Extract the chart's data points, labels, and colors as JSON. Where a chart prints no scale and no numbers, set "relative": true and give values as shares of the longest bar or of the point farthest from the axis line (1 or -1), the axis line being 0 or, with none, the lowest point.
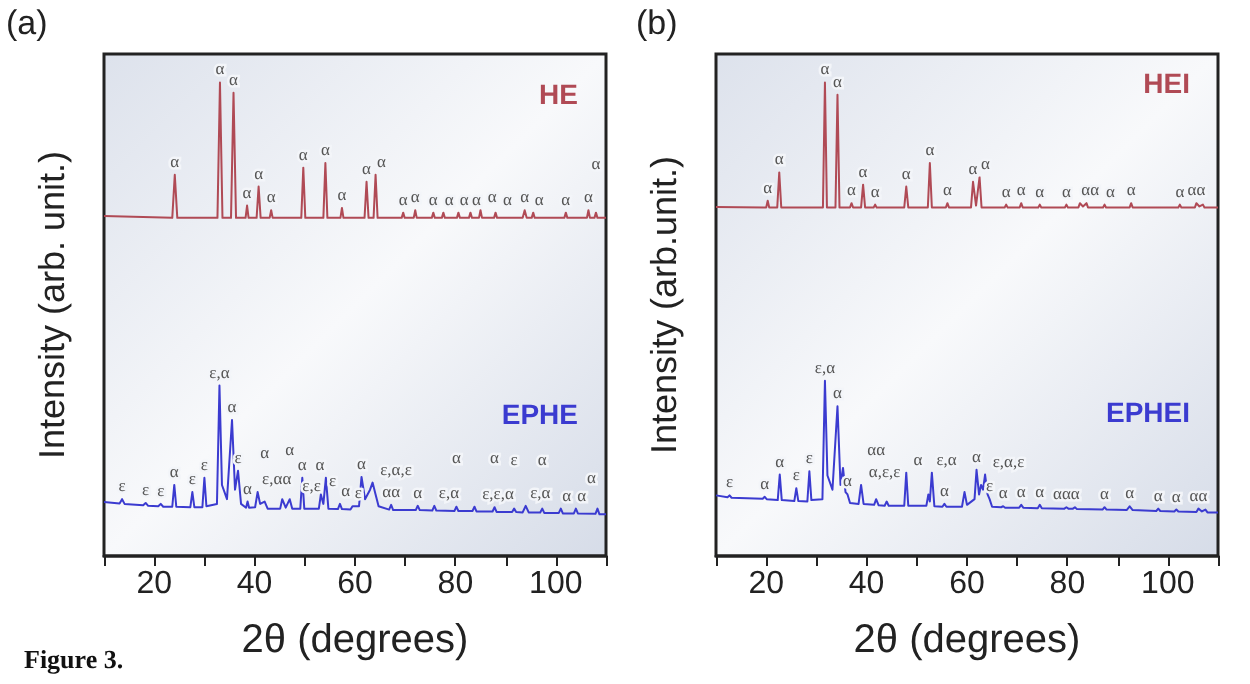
{
  "chart_data": [
    {
      "type": "line",
      "title": "(a)",
      "xlabel": "2θ (degrees)",
      "ylabel": "Intensity (arb. unit.)",
      "relative": true,
      "xlim": [
        10,
        110
      ],
      "xticks": [
        {
          "value": 10,
          "label": null
        },
        20,
        {
          "value": 30,
          "label": null
        },
        40,
        {
          "value": 50,
          "label": null
        },
        60,
        {
          "value": 70,
          "label": null
        },
        80,
        {
          "value": 90,
          "label": null
        },
        100,
        {
          "value": 110,
          "label": null
        }
      ],
      "series": [
        {
          "name": "HE",
          "color": "#b04a55",
          "x": [
            10,
            23.6,
            24.1,
            24.6,
            32.6,
            33.1,
            33.6,
            35.3,
            35.8,
            36.3,
            38.2,
            38.5,
            38.8,
            40.4,
            40.8,
            41.2,
            43,
            43.3,
            43.6,
            49.3,
            49.7,
            50.1,
            53.7,
            54.1,
            54.5,
            57.1,
            57.4,
            57.7,
            61.9,
            62.3,
            62.7,
            63.7,
            64.1,
            64.5,
            69.3,
            69.6,
            69.9,
            71.7,
            72,
            72.3,
            75.3,
            75.6,
            75.9,
            77.3,
            77.6,
            77.9,
            80.3,
            80.6,
            80.9,
            82.7,
            83,
            83.3,
            84.7,
            85,
            85.3,
            87.7,
            88,
            88.3,
            93.4,
            93.8,
            94.2,
            95.2,
            95.5,
            95.8,
            101.7,
            102,
            102.3,
            106.2,
            106.5,
            106.8,
            107.7,
            108,
            108.3,
            110
          ],
          "values": [
            0.718,
            0.714,
            0.805,
            0.714,
            0.714,
            1.0,
            0.714,
            0.714,
            0.978,
            0.714,
            0.714,
            0.74,
            0.714,
            0.714,
            0.78,
            0.714,
            0.714,
            0.73,
            0.714,
            0.714,
            0.82,
            0.714,
            0.714,
            0.83,
            0.714,
            0.714,
            0.735,
            0.714,
            0.714,
            0.79,
            0.714,
            0.714,
            0.805,
            0.714,
            0.714,
            0.725,
            0.714,
            0.714,
            0.73,
            0.714,
            0.714,
            0.725,
            0.714,
            0.714,
            0.725,
            0.714,
            0.714,
            0.725,
            0.714,
            0.714,
            0.725,
            0.714,
            0.714,
            0.73,
            0.714,
            0.714,
            0.725,
            0.714,
            0.714,
            0.73,
            0.714,
            0.714,
            0.725,
            0.714,
            0.714,
            0.725,
            0.714,
            0.714,
            0.73,
            0.714,
            0.714,
            0.725,
            0.714,
            0.714
          ]
        },
        {
          "name": "EPHE",
          "color": "#3b3bd0",
          "x": [
            10,
            13.1,
            13.6,
            14.1,
            17.8,
            18.3,
            18.8,
            20.8,
            21.3,
            21.8,
            23.6,
            24,
            24.4,
            27.2,
            27.6,
            28,
            29.6,
            30,
            30.4,
            32.5,
            33,
            33.5,
            34.5,
            35.5,
            36.1,
            36.7,
            37.3,
            38.3,
            38.6,
            38.9,
            40.1,
            40.6,
            41.1,
            42,
            42.6,
            45.1,
            45.5,
            46.2,
            47,
            47.5,
            49.1,
            49.5,
            49.9,
            52.8,
            53.2,
            53.7,
            54.2,
            54.7,
            56.6,
            57,
            57.4,
            59.1,
            59.5,
            60.8,
            61.3,
            62,
            63,
            63.5,
            64.1,
            64.7,
            66.8,
            67.2,
            67.6,
            72.1,
            72.5,
            72.9,
            75.4,
            75.8,
            76.2,
            79.8,
            80.2,
            80.6,
            83.4,
            83.8,
            84.2,
            87.4,
            87.8,
            88.2,
            91.3,
            91.7,
            92.1,
            93.4,
            94,
            94.6,
            96.9,
            97.3,
            97.7,
            100.6,
            101,
            101.4,
            103.6,
            104,
            104.4,
            107.9,
            108.3,
            108.7,
            110
          ],
          "values": [
            0.114,
            0.111,
            0.12,
            0.11,
            0.107,
            0.112,
            0.106,
            0.105,
            0.11,
            0.104,
            0.104,
            0.15,
            0.104,
            0.103,
            0.135,
            0.103,
            0.103,
            0.165,
            0.105,
            0.11,
            0.36,
            0.15,
            0.12,
            0.287,
            0.14,
            0.18,
            0.11,
            0.102,
            0.115,
            0.102,
            0.103,
            0.135,
            0.11,
            0.115,
            0.1,
            0.1,
            0.12,
            0.102,
            0.12,
            0.1,
            0.1,
            0.165,
            0.1,
            0.1,
            0.13,
            0.11,
            0.165,
            0.1,
            0.099,
            0.11,
            0.099,
            0.098,
            0.105,
            0.105,
            0.167,
            0.12,
            0.14,
            0.155,
            0.13,
            0.105,
            0.098,
            0.108,
            0.097,
            0.097,
            0.106,
            0.097,
            0.096,
            0.106,
            0.096,
            0.095,
            0.104,
            0.095,
            0.095,
            0.104,
            0.094,
            0.094,
            0.103,
            0.093,
            0.093,
            0.1,
            0.093,
            0.092,
            0.106,
            0.092,
            0.092,
            0.1,
            0.091,
            0.091,
            0.1,
            0.09,
            0.09,
            0.1,
            0.09,
            0.089,
            0.1,
            0.088,
            0.088
          ]
        }
      ],
      "annotations": [
        "Figure 3.",
        {
          "text": "α",
          "x": 24.1,
          "y": 0.805
        },
        {
          "text": "α",
          "x": 33.1,
          "y": 1.0
        },
        {
          "text": "α",
          "x": 35.8,
          "y": 0.978
        },
        {
          "text": "α",
          "x": 38.5,
          "y": 0.74
        },
        {
          "text": "α",
          "x": 40.8,
          "y": 0.78
        },
        {
          "text": "α",
          "x": 43.3,
          "y": 0.73
        },
        {
          "text": "α",
          "x": 49.7,
          "y": 0.82
        },
        {
          "text": "α",
          "x": 54.1,
          "y": 0.83
        },
        {
          "text": "α",
          "x": 57.4,
          "y": 0.735
        },
        {
          "text": "α",
          "x": 62.3,
          "y": 0.79
        },
        {
          "text": "α",
          "x": 64.1,
          "y": 0.805
        },
        {
          "text": "α",
          "x": 69.6,
          "y": 0.725
        },
        {
          "text": "α",
          "x": 72,
          "y": 0.73
        },
        {
          "text": "α",
          "x": 75.6,
          "y": 0.725
        },
        {
          "text": "α",
          "x": 77.6,
          "y": 0.725
        },
        {
          "text": "α",
          "x": 80.6,
          "y": 0.725
        },
        {
          "text": "α",
          "x": 83,
          "y": 0.725
        },
        {
          "text": "α",
          "x": 85,
          "y": 0.73
        },
        {
          "text": "α",
          "x": 88,
          "y": 0.725
        },
        {
          "text": "α",
          "x": 93.8,
          "y": 0.73
        },
        {
          "text": "α",
          "x": 95.5,
          "y": 0.725
        },
        {
          "text": "α",
          "x": 102,
          "y": 0.725
        },
        {
          "text": "α",
          "x": 106.5,
          "y": 0.73
        },
        {
          "text": "α",
          "x": 108,
          "y": 0.725
        },
        {
          "text": "ε",
          "x": 13.6,
          "y": 0.12
        },
        {
          "text": "ε",
          "x": 18.3,
          "y": 0.112
        },
        {
          "text": "ε",
          "x": 21.3,
          "y": 0.11
        },
        {
          "text": "α",
          "x": 24,
          "y": 0.15
        },
        {
          "text": "ε",
          "x": 27.6,
          "y": 0.135
        },
        {
          "text": "ε",
          "x": 30,
          "y": 0.165
        },
        {
          "text": "ε,α",
          "x": 33,
          "y": 0.36
        },
        {
          "text": "α",
          "x": 35.5,
          "y": 0.287
        },
        {
          "text": "ε",
          "x": 36.7,
          "y": 0.18
        },
        {
          "text": "α",
          "x": 38.6,
          "y": 0.115
        },
        {
          "text": "ε,αα",
          "x": 40.6,
          "y": 0.135
        },
        {
          "text": "α",
          "x": 42,
          "y": 0.115
        },
        {
          "text": "ε,ε",
          "x": 45.5,
          "y": 0.12
        },
        {
          "text": "α",
          "x": 47,
          "y": 0.12
        },
        {
          "text": "α",
          "x": 49.5,
          "y": 0.165
        },
        {
          "text": "ε",
          "x": 53.2,
          "y": 0.13
        },
        {
          "text": "α",
          "x": 54.2,
          "y": 0.165
        },
        {
          "text": "α",
          "x": 57,
          "y": 0.11
        },
        {
          "text": "ε",
          "x": 59.5,
          "y": 0.105
        },
        {
          "text": "α",
          "x": 61.3,
          "y": 0.167
        },
        {
          "text": "ε,α,ε",
          "x": 63.5,
          "y": 0.155
        },
        {
          "text": "αα",
          "x": 67.2,
          "y": 0.108
        },
        {
          "text": "α",
          "x": 72.5,
          "y": 0.106
        },
        {
          "text": "ε,α",
          "x": 75.8,
          "y": 0.106
        },
        {
          "text": "α",
          "x": 80.2,
          "y": 0.104
        },
        {
          "text": "ε,ε,α",
          "x": 83.8,
          "y": 0.104
        },
        {
          "text": "α",
          "x": 87.8,
          "y": 0.103
        },
        {
          "text": "ε",
          "x": 91.7,
          "y": 0.1
        },
        {
          "text": "ε,α",
          "x": 94,
          "y": 0.106
        },
        {
          "text": "α",
          "x": 97.3,
          "y": 0.1
        },
        {
          "text": "α",
          "x": 101,
          "y": 0.1
        },
        {
          "text": "α",
          "x": 104,
          "y": 0.1
        },
        {
          "text": "α",
          "x": 108.3,
          "y": 0.1
        }
      ]
    },
    {
      "type": "line",
      "title": "(b)",
      "xlabel": "2θ (degrees)",
      "ylabel": "Intensity (arb.unit.)",
      "relative": true,
      "xlim": [
        10,
        110
      ],
      "xticks": [
        {
          "value": 10,
          "label": null
        },
        20,
        {
          "value": 30,
          "label": null
        },
        40,
        {
          "value": 50,
          "label": null
        },
        60,
        {
          "value": 70,
          "label": null
        },
        80,
        {
          "value": 90,
          "label": null
        },
        100,
        {
          "value": 110,
          "label": null
        }
      ],
      "series": [
        {
          "name": "HEI",
          "color": "#b04a55",
          "x": [
            10,
            20,
            20.3,
            20.6,
            22.2,
            22.6,
            23,
            31.3,
            31.7,
            32.1,
            33.8,
            34.2,
            34.6,
            36.7,
            37,
            37.3,
            38.9,
            39.3,
            39.7,
            41.4,
            41.7,
            42,
            47.5,
            47.9,
            48.3,
            52.2,
            52.6,
            53,
            55.8,
            56.1,
            56.4,
            60.8,
            61.2,
            61.8,
            62.5,
            62.9,
            67.5,
            67.8,
            68.1,
            70.5,
            70.8,
            71.1,
            74.2,
            74.5,
            74.8,
            79.5,
            79.8,
            80.1,
            82.2,
            82.5,
            83.1,
            83.8,
            84.1,
            87.1,
            87.4,
            87.7,
            92.4,
            92.7,
            93,
            102.1,
            102.4,
            102.7,
            105.4,
            105.7,
            106.3,
            107,
            107.3,
            110
          ],
          "values": [
            0.737,
            0.736,
            0.75,
            0.736,
            0.736,
            0.81,
            0.736,
            0.736,
            1.0,
            0.736,
            0.736,
            0.974,
            0.736,
            0.736,
            0.745,
            0.736,
            0.736,
            0.784,
            0.736,
            0.736,
            0.742,
            0.736,
            0.736,
            0.78,
            0.736,
            0.736,
            0.83,
            0.736,
            0.736,
            0.745,
            0.736,
            0.736,
            0.79,
            0.74,
            0.8,
            0.736,
            0.736,
            0.742,
            0.736,
            0.736,
            0.745,
            0.736,
            0.736,
            0.742,
            0.736,
            0.736,
            0.742,
            0.736,
            0.736,
            0.745,
            0.738,
            0.745,
            0.736,
            0.736,
            0.742,
            0.736,
            0.736,
            0.745,
            0.736,
            0.736,
            0.742,
            0.736,
            0.736,
            0.745,
            0.738,
            0.742,
            0.736,
            0.736
          ]
        },
        {
          "name": "EPHEI",
          "color": "#3b3bd0",
          "x": [
            10,
            12.3,
            12.7,
            13.1,
            19.3,
            19.7,
            20.1,
            22.3,
            22.7,
            23.1,
            25.6,
            26,
            26.4,
            28.2,
            28.6,
            29,
            31.2,
            31.7,
            32.2,
            33.2,
            34.2,
            34.8,
            35.3,
            35.8,
            36.2,
            36.7,
            38.4,
            38.9,
            39.4,
            41.5,
            41.9,
            42.4,
            43.6,
            44,
            44.4,
            47.5,
            47.9,
            48.3,
            51.9,
            52.3,
            52.6,
            53,
            53.5,
            55.1,
            55.5,
            55.9,
            59,
            59.5,
            60,
            61.5,
            61.9,
            62.4,
            62.8,
            63.2,
            63.6,
            64.1,
            64.5,
            65,
            66.8,
            67.2,
            67.6,
            70.4,
            70.8,
            71.2,
            74.1,
            74.5,
            74.9,
            79.4,
            79.8,
            80.2,
            81.1,
            81.5,
            81.9,
            87,
            87.4,
            87.8,
            91.8,
            92.4,
            93,
            97.7,
            98.1,
            98.5,
            101.3,
            101.7,
            102.1,
            105.7,
            106.1,
            106.8,
            107.5,
            107.9,
            110
          ],
          "values": [
            0.128,
            0.124,
            0.128,
            0.123,
            0.121,
            0.125,
            0.12,
            0.118,
            0.172,
            0.118,
            0.116,
            0.143,
            0.116,
            0.115,
            0.179,
            0.118,
            0.12,
            0.37,
            0.17,
            0.14,
            0.316,
            0.15,
            0.186,
            0.135,
            0.13,
            0.112,
            0.11,
            0.15,
            0.11,
            0.108,
            0.12,
            0.107,
            0.106,
            0.115,
            0.106,
            0.106,
            0.176,
            0.106,
            0.106,
            0.13,
            0.115,
            0.176,
            0.105,
            0.104,
            0.11,
            0.104,
            0.104,
            0.135,
            0.108,
            0.12,
            0.182,
            0.13,
            0.15,
            0.14,
            0.172,
            0.13,
            0.12,
            0.104,
            0.103,
            0.105,
            0.102,
            0.102,
            0.108,
            0.102,
            0.101,
            0.108,
            0.101,
            0.1,
            0.103,
            0.1,
            0.1,
            0.103,
            0.099,
            0.098,
            0.103,
            0.098,
            0.097,
            0.105,
            0.097,
            0.095,
            0.1,
            0.095,
            0.094,
            0.098,
            0.094,
            0.093,
            0.1,
            0.094,
            0.098,
            0.092,
            0.092
          ]
        }
      ],
      "annotations": [
        {
          "text": "α",
          "x": 20.3,
          "y": 0.75
        },
        {
          "text": "α",
          "x": 22.6,
          "y": 0.81
        },
        {
          "text": "α",
          "x": 31.7,
          "y": 1.0
        },
        {
          "text": "α",
          "x": 34.2,
          "y": 0.974
        },
        {
          "text": "α",
          "x": 37,
          "y": 0.745
        },
        {
          "text": "α",
          "x": 39.3,
          "y": 0.784
        },
        {
          "text": "α",
          "x": 41.7,
          "y": 0.742
        },
        {
          "text": "α",
          "x": 47.9,
          "y": 0.78
        },
        {
          "text": "α",
          "x": 52.6,
          "y": 0.83
        },
        {
          "text": "α",
          "x": 56.1,
          "y": 0.745
        },
        {
          "text": "α",
          "x": 61.2,
          "y": 0.79
        },
        {
          "text": "α",
          "x": 62.5,
          "y": 0.8
        },
        {
          "text": "α",
          "x": 67.8,
          "y": 0.742
        },
        {
          "text": "α",
          "x": 70.8,
          "y": 0.745
        },
        {
          "text": "α",
          "x": 74.5,
          "y": 0.742
        },
        {
          "text": "α",
          "x": 79.8,
          "y": 0.742
        },
        {
          "text": "αα",
          "x": 82.5,
          "y": 0.745
        },
        {
          "text": "α",
          "x": 87.4,
          "y": 0.742
        },
        {
          "text": "α",
          "x": 92.7,
          "y": 0.745
        },
        {
          "text": "α",
          "x": 102.4,
          "y": 0.742
        },
        {
          "text": "αα",
          "x": 105.7,
          "y": 0.745
        },
        {
          "text": "ε",
          "x": 12.7,
          "y": 0.128
        },
        {
          "text": "α",
          "x": 19.7,
          "y": 0.125
        },
        {
          "text": "α",
          "x": 22.7,
          "y": 0.172
        },
        {
          "text": "ε",
          "x": 26,
          "y": 0.143
        },
        {
          "text": "ε",
          "x": 28.6,
          "y": 0.179
        },
        {
          "text": "ε,α",
          "x": 31.7,
          "y": 0.37
        },
        {
          "text": "α",
          "x": 34.2,
          "y": 0.316
        },
        {
          "text": "α",
          "x": 36.2,
          "y": 0.13
        },
        {
          "text": "α,ε,ε",
          "x": 38.9,
          "y": 0.15
        },
        {
          "text": "αα",
          "x": 41.9,
          "y": 0.12
        },
        {
          "text": "α",
          "x": 47.9,
          "y": 0.176
        },
        {
          "text": "ε,α",
          "x": 53,
          "y": 0.176
        },
        {
          "text": "α",
          "x": 55.5,
          "y": 0.11
        },
        {
          "text": "α",
          "x": 61.9,
          "y": 0.182
        },
        {
          "text": "ε,α,ε",
          "x": 63.6,
          "y": 0.172
        },
        {
          "text": "ε",
          "x": 64.5,
          "y": 0.12
        },
        {
          "text": "α",
          "x": 67.2,
          "y": 0.105
        },
        {
          "text": "α",
          "x": 70.8,
          "y": 0.108
        },
        {
          "text": "α",
          "x": 74.5,
          "y": 0.108
        },
        {
          "text": "ααα",
          "x": 79.8,
          "y": 0.103
        },
        {
          "text": "α",
          "x": 87.4,
          "y": 0.103
        },
        {
          "text": "α",
          "x": 92.4,
          "y": 0.105
        },
        {
          "text": "α",
          "x": 98.1,
          "y": 0.1
        },
        {
          "text": "α",
          "x": 101.7,
          "y": 0.098
        },
        {
          "text": "αα",
          "x": 106.1,
          "y": 0.1
        }
      ]
    }
  ]
}
